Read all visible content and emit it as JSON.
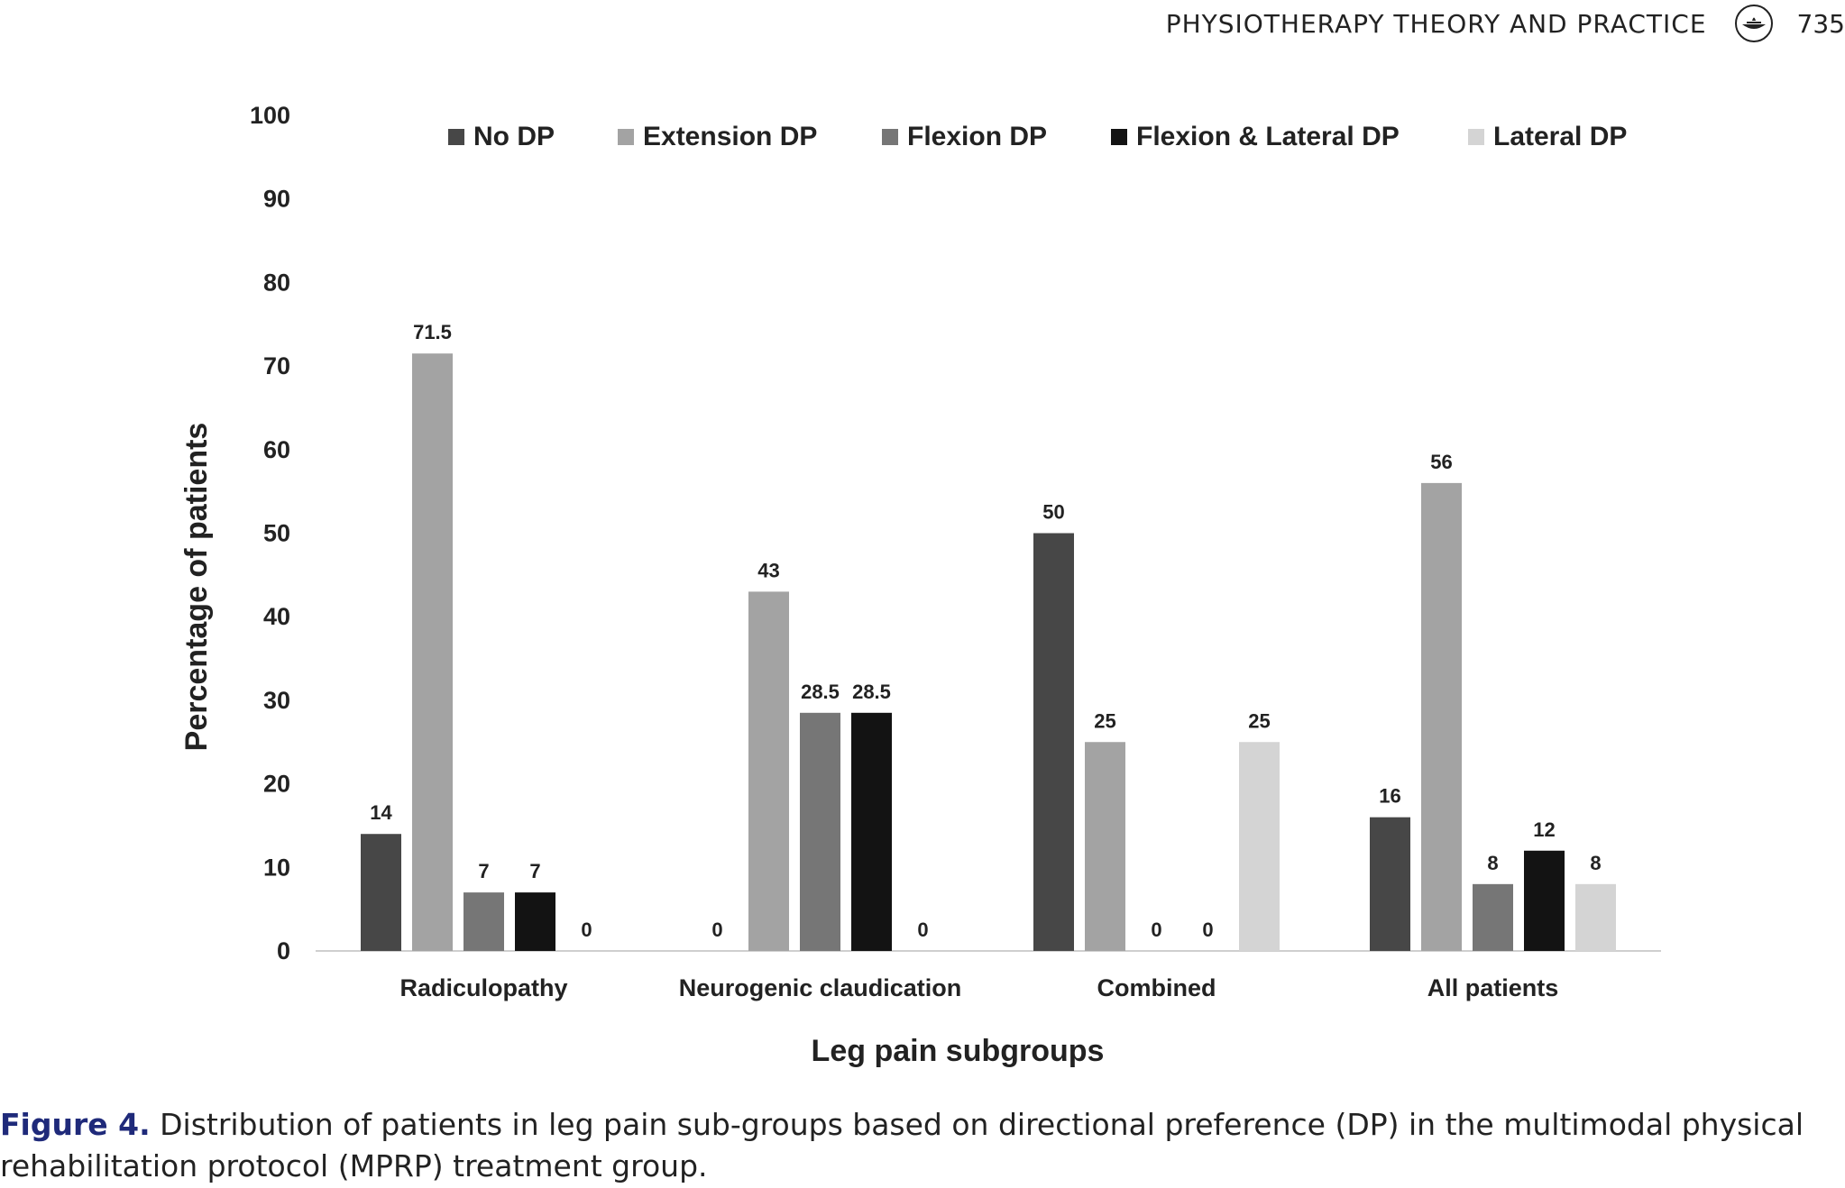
{
  "header": {
    "journal": "PHYSIOTHERAPY THEORY AND PRACTICE",
    "page_number": "735",
    "logo_icon": "publisher-lamp-icon"
  },
  "caption": {
    "label": "Figure 4.",
    "text": " Distribution of patients in leg pain sub-groups based on directional preference (DP) in the multimodal physical rehabilitation protocol (MPRP) treatment group."
  },
  "chart_data": {
    "type": "bar",
    "title": "",
    "xlabel": "Leg pain subgroups",
    "ylabel": "Percentage of patients",
    "ylim": [
      0,
      100
    ],
    "yticks": [
      0,
      10,
      20,
      30,
      40,
      50,
      60,
      70,
      80,
      90,
      100
    ],
    "grid": false,
    "legend_position": "top",
    "categories": [
      "Radiculopathy",
      "Neurogenic claudication",
      "Combined",
      "All patients"
    ],
    "series": [
      {
        "name": "No DP",
        "color": "#474747",
        "values": [
          14,
          0,
          50,
          16
        ],
        "labels": [
          "14",
          "0",
          "50",
          "16"
        ]
      },
      {
        "name": "Extension DP",
        "color": "#a3a3a3",
        "values": [
          71.5,
          43,
          25,
          56
        ],
        "labels": [
          "71.5",
          "43",
          "25",
          "56"
        ]
      },
      {
        "name": "Flexion DP",
        "color": "#767676",
        "values": [
          7,
          28.5,
          0,
          8
        ],
        "labels": [
          "7",
          "28.5",
          "0",
          "8"
        ]
      },
      {
        "name": "Flexion & Lateral DP",
        "color": "#131313",
        "values": [
          7,
          28.5,
          0,
          12
        ],
        "labels": [
          "7",
          "28.5",
          "0",
          "12"
        ]
      },
      {
        "name": "Lateral DP",
        "color": "#d4d4d4",
        "values": [
          0,
          0,
          25,
          8
        ],
        "labels": [
          "0",
          "0",
          "25",
          "8"
        ]
      }
    ]
  }
}
